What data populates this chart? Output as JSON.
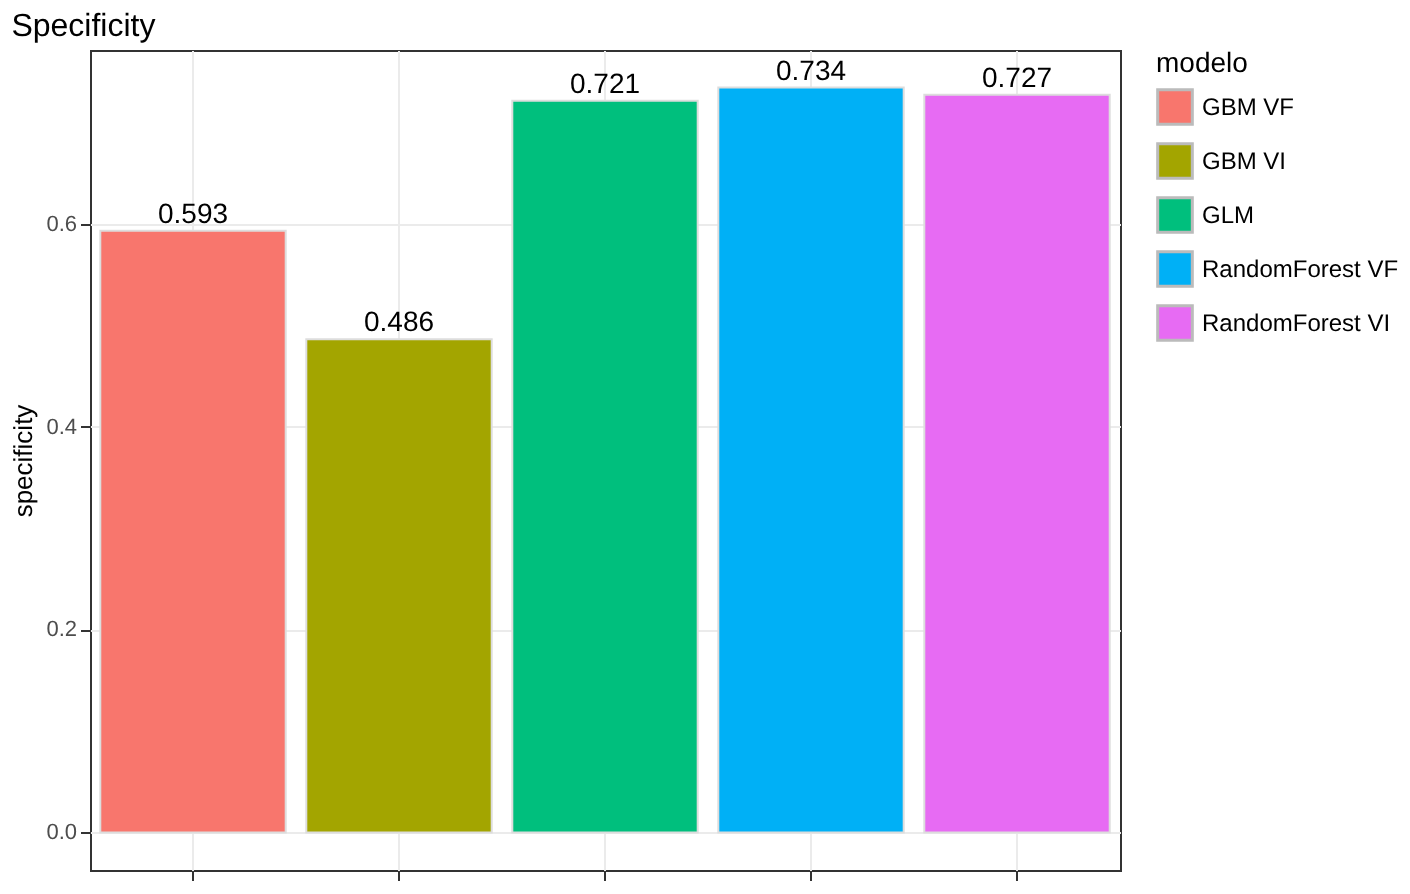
{
  "chart_data": {
    "type": "bar",
    "title": "Specificity",
    "ylabel": "specificity",
    "legend_title": "modelo",
    "categories": [
      null,
      null,
      null,
      null,
      null
    ],
    "series": [
      {
        "name": "GBM VF",
        "color": "#f8766d",
        "values": [
          0.593,
          null,
          null,
          null,
          null
        ]
      },
      {
        "name": "GBM VI",
        "color": "#a3a500",
        "values": [
          null,
          0.486,
          null,
          null,
          null
        ]
      },
      {
        "name": "GLM",
        "color": "#00bf7d",
        "values": [
          null,
          null,
          0.721,
          null,
          null
        ]
      },
      {
        "name": "RandomForest VF",
        "color": "#00b0f6",
        "values": [
          null,
          null,
          null,
          0.734,
          null
        ]
      },
      {
        "name": "RandomForest VI",
        "color": "#e76bf3",
        "values": [
          null,
          null,
          null,
          null,
          0.727
        ]
      }
    ],
    "ylim": [
      -0.037,
      0.771
    ],
    "yticks": [
      {
        "value": 0,
        "label": "0.0"
      },
      {
        "value": 0.2,
        "label": "0.2"
      },
      {
        "value": 0.4,
        "label": "0.4"
      },
      {
        "value": 0.6,
        "label": "0.6"
      }
    ],
    "grid": true,
    "legend": "right",
    "data_labels": true
  }
}
